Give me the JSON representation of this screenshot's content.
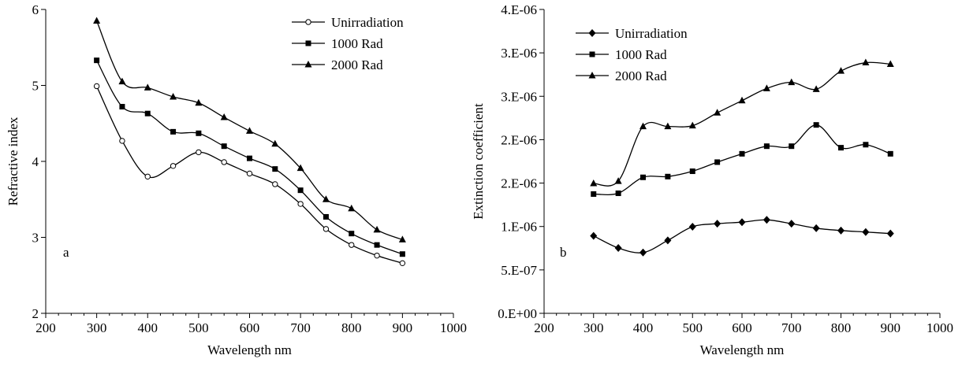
{
  "chart_data": [
    {
      "type": "line",
      "panel_label": "a",
      "xlabel": "Wavelength nm",
      "ylabel": "Refractive index",
      "xlim": [
        200,
        1000
      ],
      "ylim": [
        2,
        6
      ],
      "x_ticks": [
        "200",
        "300",
        "400",
        "500",
        "600",
        "700",
        "800",
        "900",
        "1000"
      ],
      "y_ticks": [
        "2",
        "3",
        "4",
        "5",
        "6"
      ],
      "legend_position": "top-right",
      "grid": false,
      "x": [
        300,
        350,
        400,
        450,
        500,
        550,
        600,
        650,
        700,
        750,
        800,
        850,
        900
      ],
      "series": [
        {
          "name": "Unirradiation",
          "marker": "circle-open",
          "values": [
            4.99,
            4.27,
            3.8,
            3.94,
            4.12,
            3.99,
            3.84,
            3.7,
            3.44,
            3.11,
            2.9,
            2.76,
            2.66
          ]
        },
        {
          "name": "1000 Rad",
          "marker": "square",
          "values": [
            5.33,
            4.72,
            4.63,
            4.39,
            4.37,
            4.2,
            4.04,
            3.9,
            3.62,
            3.27,
            3.05,
            2.9,
            2.78
          ]
        },
        {
          "name": "2000 Rad",
          "marker": "triangle",
          "values": [
            5.85,
            5.05,
            4.97,
            4.85,
            4.77,
            4.58,
            4.4,
            4.23,
            3.91,
            3.5,
            3.38,
            3.1,
            2.97
          ]
        }
      ]
    },
    {
      "type": "line",
      "panel_label": "b",
      "xlabel": "Wavelength nm",
      "ylabel": "Extinction coefficient",
      "xlim": [
        200,
        1000
      ],
      "ylim": [
        0,
        4e-06
      ],
      "x_ticks": [
        "200",
        "300",
        "400",
        "500",
        "600",
        "700",
        "800",
        "900",
        "1000"
      ],
      "y_ticks": [
        "0.E+00",
        "5.E-07",
        "1.E-06",
        "2.E-06",
        "2.E-06",
        "3.E-06",
        "3.E-06",
        "4.E-06"
      ],
      "legend_position": "top-left",
      "grid": false,
      "x": [
        300,
        350,
        400,
        450,
        500,
        550,
        600,
        650,
        700,
        750,
        800,
        850,
        900
      ],
      "series": [
        {
          "name": "Unirradiation",
          "marker": "diamond",
          "values": [
            1.02e-06,
            8.6e-07,
            8e-07,
            9.6e-07,
            1.14e-06,
            1.18e-06,
            1.2e-06,
            1.23e-06,
            1.18e-06,
            1.12e-06,
            1.09e-06,
            1.07e-06,
            1.05e-06
          ]
        },
        {
          "name": "1000 Rad",
          "marker": "square",
          "values": [
            1.57e-06,
            1.58e-06,
            1.79e-06,
            1.8e-06,
            1.87e-06,
            1.99e-06,
            2.1e-06,
            2.2e-06,
            2.2e-06,
            2.48e-06,
            2.18e-06,
            2.22e-06,
            2.1e-06
          ]
        },
        {
          "name": "2000 Rad",
          "marker": "triangle",
          "values": [
            1.71e-06,
            1.74e-06,
            2.46e-06,
            2.46e-06,
            2.47e-06,
            2.64e-06,
            2.8e-06,
            2.96e-06,
            3.04e-06,
            2.95e-06,
            3.19e-06,
            3.3e-06,
            3.28e-06
          ]
        }
      ]
    }
  ]
}
